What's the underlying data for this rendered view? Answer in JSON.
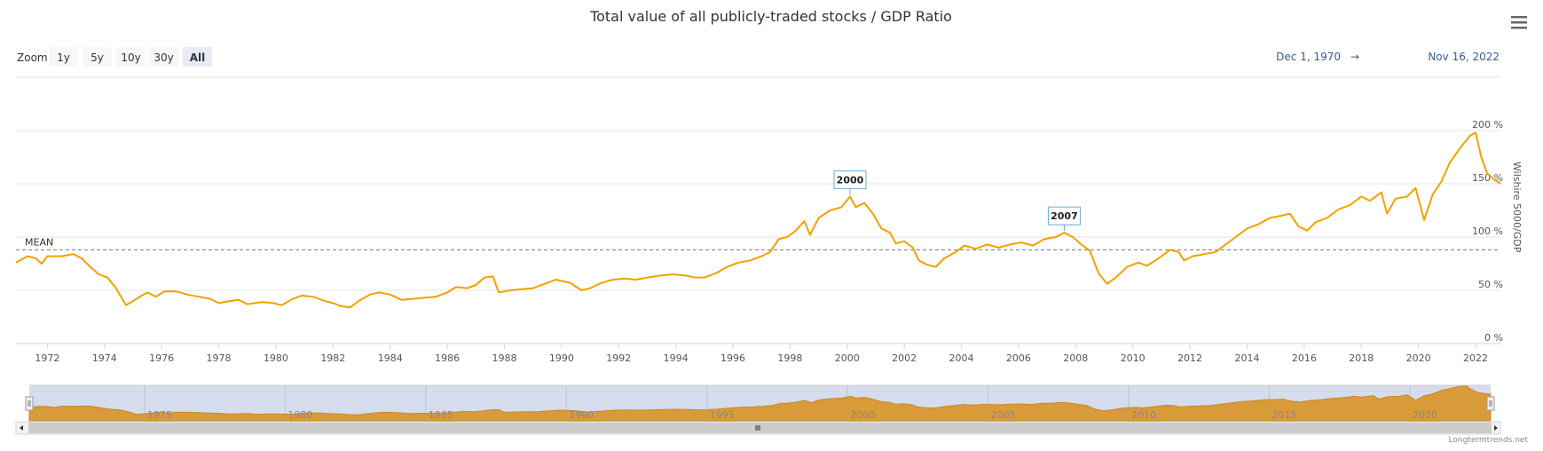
{
  "chart_data": {
    "type": "line",
    "title": "Total value of all publicly-traded stocks / GDP Ratio",
    "ylabel": "Wilshire 5000/GDP",
    "ylim": [
      0,
      200
    ],
    "y_ticks": [
      "0 %",
      "50 %",
      "100 %",
      "150 %",
      "200 %"
    ],
    "x_ticks": [
      "1972",
      "1974",
      "1976",
      "1978",
      "1980",
      "1982",
      "1984",
      "1986",
      "1988",
      "1990",
      "1992",
      "1994",
      "1996",
      "1998",
      "2000",
      "2002",
      "2004",
      "2006",
      "2008",
      "2010",
      "2012",
      "2014",
      "2016",
      "2018",
      "2020",
      "2022"
    ],
    "navigator_ticks": [
      "1975",
      "1980",
      "1985",
      "1990",
      "1995",
      "2000",
      "2005",
      "2010",
      "2015",
      "2020"
    ],
    "color": "#f5a000",
    "series": [
      {
        "name": "Wilshire 5000/GDP",
        "points": [
          [
            1970.9,
            76
          ],
          [
            1971.3,
            82
          ],
          [
            1971.6,
            80
          ],
          [
            1971.8,
            75
          ],
          [
            1972.0,
            82
          ],
          [
            1972.5,
            82
          ],
          [
            1972.9,
            84
          ],
          [
            1973.2,
            80
          ],
          [
            1973.5,
            72
          ],
          [
            1973.8,
            65
          ],
          [
            1974.1,
            62
          ],
          [
            1974.4,
            52
          ],
          [
            1974.75,
            36
          ],
          [
            1975.0,
            40
          ],
          [
            1975.3,
            45
          ],
          [
            1975.5,
            48
          ],
          [
            1975.8,
            44
          ],
          [
            1976.1,
            49
          ],
          [
            1976.5,
            49
          ],
          [
            1976.9,
            46
          ],
          [
            1977.3,
            44
          ],
          [
            1977.7,
            42
          ],
          [
            1978.0,
            38
          ],
          [
            1978.4,
            40
          ],
          [
            1978.7,
            41
          ],
          [
            1979.0,
            37
          ],
          [
            1979.5,
            39
          ],
          [
            1979.9,
            38
          ],
          [
            1980.2,
            36
          ],
          [
            1980.6,
            42
          ],
          [
            1980.9,
            45
          ],
          [
            1981.3,
            44
          ],
          [
            1981.7,
            40
          ],
          [
            1982.0,
            38
          ],
          [
            1982.3,
            35
          ],
          [
            1982.6,
            34
          ],
          [
            1982.9,
            40
          ],
          [
            1983.3,
            46
          ],
          [
            1983.6,
            48
          ],
          [
            1984.0,
            46
          ],
          [
            1984.4,
            41
          ],
          [
            1984.8,
            42
          ],
          [
            1985.2,
            43
          ],
          [
            1985.6,
            44
          ],
          [
            1986.0,
            48
          ],
          [
            1986.3,
            53
          ],
          [
            1986.7,
            52
          ],
          [
            1987.0,
            55
          ],
          [
            1987.3,
            62
          ],
          [
            1987.6,
            63
          ],
          [
            1987.8,
            48
          ],
          [
            1988.2,
            50
          ],
          [
            1988.6,
            51
          ],
          [
            1989.0,
            52
          ],
          [
            1989.4,
            56
          ],
          [
            1989.8,
            60
          ],
          [
            1990.3,
            57
          ],
          [
            1990.7,
            50
          ],
          [
            1991.0,
            52
          ],
          [
            1991.4,
            57
          ],
          [
            1991.8,
            60
          ],
          [
            1992.2,
            61
          ],
          [
            1992.6,
            60
          ],
          [
            1993.0,
            62
          ],
          [
            1993.5,
            64
          ],
          [
            1993.9,
            65
          ],
          [
            1994.3,
            64
          ],
          [
            1994.7,
            62
          ],
          [
            1995.0,
            62
          ],
          [
            1995.4,
            66
          ],
          [
            1995.8,
            72
          ],
          [
            1996.2,
            76
          ],
          [
            1996.6,
            78
          ],
          [
            1997.0,
            82
          ],
          [
            1997.3,
            86
          ],
          [
            1997.6,
            98
          ],
          [
            1997.9,
            100
          ],
          [
            1998.2,
            106
          ],
          [
            1998.5,
            115
          ],
          [
            1998.7,
            102
          ],
          [
            1999.0,
            118
          ],
          [
            1999.4,
            125
          ],
          [
            1999.8,
            128
          ],
          [
            2000.1,
            138
          ],
          [
            2000.3,
            128
          ],
          [
            2000.6,
            132
          ],
          [
            2000.9,
            122
          ],
          [
            2001.2,
            108
          ],
          [
            2001.5,
            104
          ],
          [
            2001.7,
            94
          ],
          [
            2002.0,
            96
          ],
          [
            2002.3,
            90
          ],
          [
            2002.5,
            78
          ],
          [
            2002.8,
            74
          ],
          [
            2003.1,
            72
          ],
          [
            2003.4,
            80
          ],
          [
            2003.8,
            86
          ],
          [
            2004.1,
            92
          ],
          [
            2004.5,
            89
          ],
          [
            2004.9,
            93
          ],
          [
            2005.3,
            90
          ],
          [
            2005.7,
            93
          ],
          [
            2006.1,
            95
          ],
          [
            2006.5,
            92
          ],
          [
            2006.9,
            98
          ],
          [
            2007.3,
            100
          ],
          [
            2007.6,
            104
          ],
          [
            2007.9,
            100
          ],
          [
            2008.2,
            93
          ],
          [
            2008.5,
            87
          ],
          [
            2008.8,
            66
          ],
          [
            2009.1,
            56
          ],
          [
            2009.4,
            62
          ],
          [
            2009.8,
            72
          ],
          [
            2010.2,
            76
          ],
          [
            2010.5,
            73
          ],
          [
            2010.9,
            80
          ],
          [
            2011.3,
            88
          ],
          [
            2011.6,
            86
          ],
          [
            2011.8,
            78
          ],
          [
            2012.1,
            82
          ],
          [
            2012.5,
            84
          ],
          [
            2012.9,
            86
          ],
          [
            2013.2,
            92
          ],
          [
            2013.6,
            100
          ],
          [
            2014.0,
            108
          ],
          [
            2014.4,
            112
          ],
          [
            2014.8,
            118
          ],
          [
            2015.2,
            120
          ],
          [
            2015.5,
            122
          ],
          [
            2015.8,
            110
          ],
          [
            2016.1,
            106
          ],
          [
            2016.4,
            114
          ],
          [
            2016.8,
            118
          ],
          [
            2017.2,
            126
          ],
          [
            2017.6,
            130
          ],
          [
            2018.0,
            138
          ],
          [
            2018.3,
            134
          ],
          [
            2018.7,
            142
          ],
          [
            2018.9,
            122
          ],
          [
            2019.2,
            136
          ],
          [
            2019.6,
            138
          ],
          [
            2019.9,
            146
          ],
          [
            2020.2,
            116
          ],
          [
            2020.5,
            140
          ],
          [
            2020.8,
            152
          ],
          [
            2021.1,
            170
          ],
          [
            2021.5,
            185
          ],
          [
            2021.8,
            195
          ],
          [
            2022.0,
            198
          ],
          [
            2022.2,
            175
          ],
          [
            2022.4,
            160
          ],
          [
            2022.6,
            155
          ],
          [
            2022.87,
            150
          ]
        ]
      }
    ],
    "mean": {
      "label": "MEAN",
      "value": 88
    },
    "annotations": [
      {
        "label": "2000",
        "x": 2000.1,
        "y": 138
      },
      {
        "label": "2007",
        "x": 2007.6,
        "y": 104
      }
    ]
  },
  "range_selector": {
    "zoom_label": "Zoom",
    "buttons": [
      "1y",
      "5y",
      "10y",
      "30y",
      "All"
    ],
    "selected": "All",
    "from": "Dec 1, 1970",
    "separator": "→",
    "to": "Nov 16, 2022"
  },
  "credit": "Longtermtrends.net",
  "menu_icon": "hamburger-menu-icon"
}
